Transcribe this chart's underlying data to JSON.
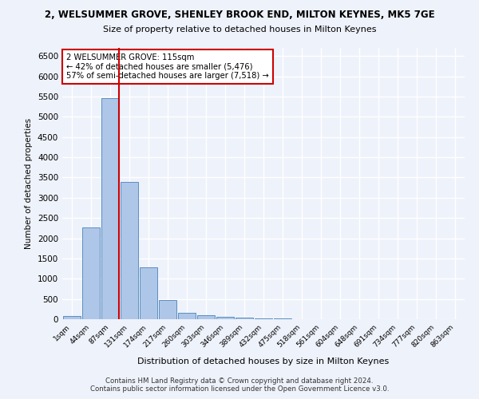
{
  "title_line1": "2, WELSUMMER GROVE, SHENLEY BROOK END, MILTON KEYNES, MK5 7GE",
  "title_line2": "Size of property relative to detached houses in Milton Keynes",
  "xlabel": "Distribution of detached houses by size in Milton Keynes",
  "ylabel": "Number of detached properties",
  "footer_line1": "Contains HM Land Registry data © Crown copyright and database right 2024.",
  "footer_line2": "Contains public sector information licensed under the Open Government Licence v3.0.",
  "bin_labels": [
    "1sqm",
    "44sqm",
    "87sqm",
    "131sqm",
    "174sqm",
    "217sqm",
    "260sqm",
    "303sqm",
    "346sqm",
    "389sqm",
    "432sqm",
    "475sqm",
    "518sqm",
    "561sqm",
    "604sqm",
    "648sqm",
    "691sqm",
    "734sqm",
    "777sqm",
    "820sqm",
    "863sqm"
  ],
  "bar_values": [
    75,
    2270,
    5450,
    3380,
    1290,
    475,
    160,
    90,
    55,
    35,
    20,
    10,
    5,
    2,
    1,
    1,
    0,
    0,
    0,
    0,
    0
  ],
  "bar_color": "#aec6e8",
  "bar_edgecolor": "#5a8fc0",
  "annotation_line1": "2 WELSUMMER GROVE: 115sqm",
  "annotation_line2": "← 42% of detached houses are smaller (5,476)",
  "annotation_line3": "57% of semi-detached houses are larger (7,518) →",
  "vline_color": "#cc0000",
  "ylim": [
    0,
    6700
  ],
  "yticks": [
    0,
    500,
    1000,
    1500,
    2000,
    2500,
    3000,
    3500,
    4000,
    4500,
    5000,
    5500,
    6000,
    6500
  ],
  "background_color": "#eef2fb",
  "grid_color": "#ffffff",
  "annotation_box_facecolor": "#ffffff",
  "annotation_box_edgecolor": "#cc0000"
}
